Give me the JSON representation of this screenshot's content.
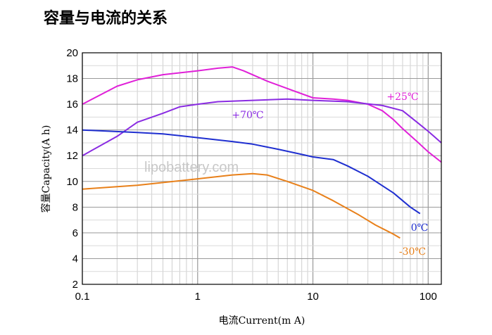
{
  "chart_data": {
    "type": "line",
    "title": "容量与电流的关系",
    "xlabel": "电流Current(m A)",
    "ylabel": "容量Capacity(A h)",
    "x_scale": "log",
    "xlim": [
      0.1,
      130
    ],
    "ylim": [
      2,
      20
    ],
    "x_ticks": [
      0.1,
      1,
      10,
      100
    ],
    "x_tick_labels": [
      "0.1",
      "1",
      "10",
      "100"
    ],
    "y_ticks": [
      2,
      4,
      6,
      8,
      10,
      12,
      14,
      16,
      18,
      20
    ],
    "grid": true,
    "watermark": "lipobattery.com",
    "series": [
      {
        "name": "+25℃",
        "color": "#e020d8",
        "points": [
          [
            0.1,
            16.0
          ],
          [
            0.2,
            17.4
          ],
          [
            0.3,
            17.9
          ],
          [
            0.5,
            18.3
          ],
          [
            1,
            18.6
          ],
          [
            1.5,
            18.8
          ],
          [
            2,
            18.9
          ],
          [
            2.5,
            18.6
          ],
          [
            4,
            17.8
          ],
          [
            7,
            17.0
          ],
          [
            10,
            16.5
          ],
          [
            15,
            16.4
          ],
          [
            20,
            16.3
          ],
          [
            30,
            16.0
          ],
          [
            40,
            15.5
          ],
          [
            50,
            14.8
          ],
          [
            60,
            14.1
          ],
          [
            80,
            13.1
          ],
          [
            100,
            12.3
          ],
          [
            130,
            11.5
          ]
        ]
      },
      {
        "name": "+70℃",
        "color": "#8a2be2",
        "points": [
          [
            0.1,
            12.0
          ],
          [
            0.2,
            13.5
          ],
          [
            0.3,
            14.6
          ],
          [
            0.5,
            15.3
          ],
          [
            0.7,
            15.8
          ],
          [
            1,
            16.0
          ],
          [
            1.5,
            16.2
          ],
          [
            3,
            16.3
          ],
          [
            6,
            16.4
          ],
          [
            10,
            16.3
          ],
          [
            20,
            16.2
          ],
          [
            40,
            15.9
          ],
          [
            60,
            15.5
          ],
          [
            80,
            14.6
          ],
          [
            100,
            13.9
          ],
          [
            130,
            13.0
          ]
        ]
      },
      {
        "name": "0℃",
        "color": "#1f2fd0",
        "points": [
          [
            0.1,
            14.0
          ],
          [
            0.3,
            13.8
          ],
          [
            0.5,
            13.7
          ],
          [
            1,
            13.4
          ],
          [
            2,
            13.1
          ],
          [
            3,
            12.9
          ],
          [
            5,
            12.5
          ],
          [
            8,
            12.1
          ],
          [
            10,
            11.9
          ],
          [
            15,
            11.7
          ],
          [
            20,
            11.2
          ],
          [
            30,
            10.4
          ],
          [
            50,
            9.1
          ],
          [
            70,
            8.0
          ],
          [
            85,
            7.5
          ]
        ]
      },
      {
        "name": "-30℃",
        "color": "#e8801a",
        "points": [
          [
            0.1,
            9.4
          ],
          [
            0.3,
            9.7
          ],
          [
            1,
            10.2
          ],
          [
            2,
            10.5
          ],
          [
            3,
            10.6
          ],
          [
            4,
            10.5
          ],
          [
            6,
            10.0
          ],
          [
            10,
            9.3
          ],
          [
            15,
            8.5
          ],
          [
            25,
            7.4
          ],
          [
            35,
            6.6
          ],
          [
            50,
            5.9
          ],
          [
            57,
            5.6
          ]
        ]
      }
    ]
  }
}
